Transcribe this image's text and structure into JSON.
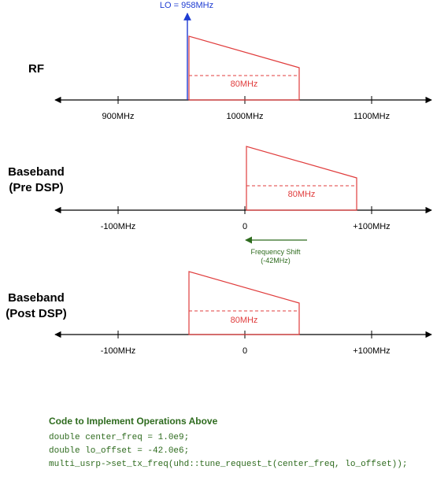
{
  "colors": {
    "axis": "#000000",
    "signal": "#e03c3c",
    "lo": "#1e3cd2",
    "shift": "#2e6b1e",
    "code_title": "#2e6b1e",
    "code_text": "#2e6b1e"
  },
  "rf": {
    "row_label_line1": "RF",
    "lo_label": "LO = 958MHz",
    "bandwidth_label": "80MHz",
    "ticks": [
      "900MHz",
      "1000MHz",
      "1100MHz"
    ]
  },
  "pre": {
    "row_label_line1": "Baseband",
    "row_label_line2": "(Pre DSP)",
    "bandwidth_label": "80MHz",
    "ticks": [
      "-100MHz",
      "0",
      "+100MHz"
    ],
    "shift_label_line1": "Frequency Shift",
    "shift_label_line2": "(-42MHz)"
  },
  "post": {
    "row_label_line1": "Baseband",
    "row_label_line2": "(Post DSP)",
    "bandwidth_label": "80MHz",
    "ticks": [
      "-100MHz",
      "0",
      "+100MHz"
    ]
  },
  "code": {
    "title": "Code to Implement Operations Above",
    "lines": [
      "double center_freq = 1.0e9;",
      "double lo_offset = -42.0e6;",
      "multi_usrp->set_tx_freq(uhd::tune_request_t(center_freq, lo_offset));"
    ]
  }
}
